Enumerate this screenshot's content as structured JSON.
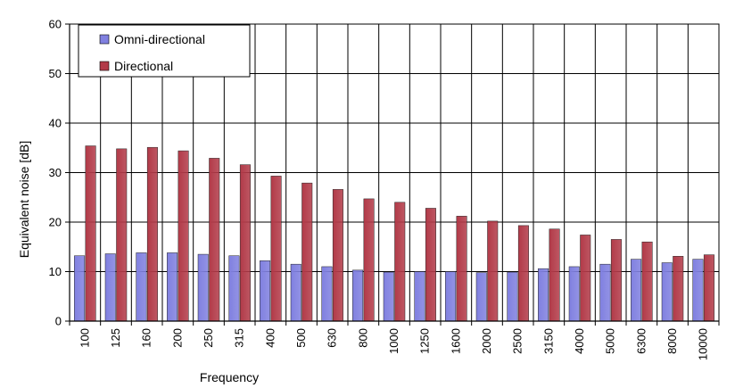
{
  "chart_data": {
    "type": "bar",
    "title": "",
    "xlabel": "Frequency",
    "ylabel": "Equivalent noise [dB]",
    "ylim": [
      0,
      60
    ],
    "yticks": [
      0,
      10,
      20,
      30,
      40,
      50,
      60
    ],
    "grid": true,
    "legend_position": "top-left",
    "categories": [
      "100",
      "125",
      "160",
      "200",
      "250",
      "315",
      "400",
      "500",
      "630",
      "800",
      "1000",
      "1250",
      "1600",
      "2000",
      "2500",
      "3150",
      "4000",
      "5000",
      "6300",
      "8000",
      "10000"
    ],
    "series": [
      {
        "name": "Omni-directional",
        "color": "#8080e0",
        "values": [
          13.2,
          13.6,
          13.8,
          13.8,
          13.5,
          13.2,
          12.2,
          11.5,
          11.0,
          10.3,
          9.9,
          10.0,
          10.0,
          9.8,
          9.9,
          10.6,
          11.0,
          11.5,
          12.5,
          11.8,
          12.5
        ]
      },
      {
        "name": "Directional",
        "color": "#b23a48",
        "values": [
          35.4,
          34.8,
          35.1,
          34.4,
          32.9,
          31.6,
          29.3,
          27.9,
          26.6,
          24.7,
          24.0,
          22.8,
          21.2,
          20.2,
          19.3,
          18.6,
          17.4,
          16.5,
          16.0,
          13.1,
          13.4
        ]
      }
    ]
  }
}
